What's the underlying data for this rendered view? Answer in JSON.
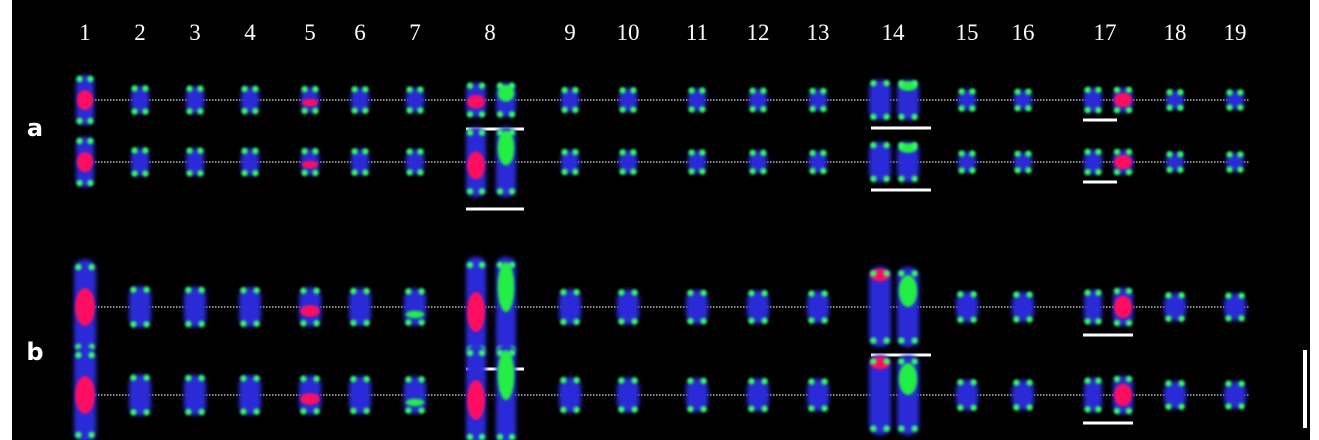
{
  "column_labels": [
    "1",
    "2",
    "3",
    "4",
    "5",
    "6",
    "7",
    "8",
    "9",
    "10",
    "11",
    "12",
    "13",
    "14",
    "15",
    "16",
    "17",
    "18",
    "19"
  ],
  "row_labels": [
    "a",
    "b"
  ]
}
